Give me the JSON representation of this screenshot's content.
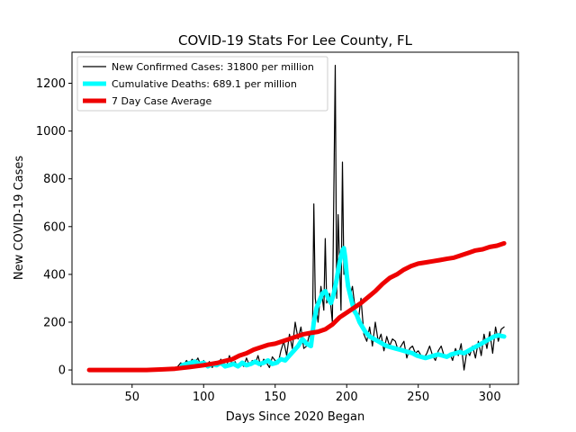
{
  "chart_data": {
    "type": "line",
    "title": "COVID-19 Stats For Lee County, FL",
    "xlabel": "Days Since 2020 Began",
    "ylabel": "New COVID-19 Cases",
    "xlim": [
      8,
      320
    ],
    "ylim": [
      -60,
      1330
    ],
    "xticks": [
      50,
      100,
      150,
      200,
      250,
      300
    ],
    "yticks": [
      0,
      200,
      400,
      600,
      800,
      1000,
      1200
    ],
    "grid": false,
    "legend_position": "top-left",
    "series": [
      {
        "name": "New Confirmed Cases: 31800 per million",
        "color": "#000000",
        "x": [
          20,
          30,
          40,
          50,
          60,
          70,
          80,
          82,
          84,
          86,
          88,
          90,
          92,
          94,
          96,
          98,
          100,
          102,
          104,
          106,
          108,
          110,
          112,
          114,
          116,
          118,
          120,
          122,
          124,
          126,
          128,
          130,
          132,
          134,
          136,
          138,
          140,
          142,
          144,
          146,
          148,
          150,
          152,
          154,
          156,
          158,
          160,
          162,
          164,
          166,
          168,
          170,
          172,
          174,
          176,
          177,
          178,
          180,
          182,
          184,
          185,
          186,
          188,
          190,
          192,
          193,
          194,
          196,
          197,
          198,
          200,
          202,
          204,
          206,
          208,
          210,
          212,
          214,
          216,
          218,
          220,
          222,
          224,
          226,
          228,
          230,
          232,
          234,
          236,
          238,
          240,
          242,
          244,
          246,
          248,
          250,
          252,
          254,
          256,
          258,
          260,
          262,
          264,
          266,
          268,
          270,
          272,
          274,
          276,
          278,
          280,
          282,
          284,
          286,
          288,
          290,
          292,
          294,
          296,
          298,
          300,
          302,
          304,
          306,
          308,
          310
        ],
        "y": [
          0,
          0,
          0,
          0,
          0,
          2,
          5,
          15,
          30,
          20,
          40,
          25,
          45,
          30,
          50,
          20,
          40,
          15,
          35,
          10,
          30,
          20,
          45,
          25,
          15,
          60,
          20,
          35,
          10,
          30,
          15,
          50,
          20,
          40,
          25,
          60,
          15,
          45,
          30,
          10,
          55,
          40,
          25,
          80,
          120,
          60,
          150,
          90,
          200,
          130,
          180,
          90,
          100,
          150,
          110,
          695,
          300,
          200,
          350,
          250,
          550,
          280,
          320,
          200,
          1275,
          300,
          650,
          250,
          870,
          400,
          450,
          300,
          350,
          250,
          200,
          300,
          150,
          120,
          180,
          100,
          200,
          120,
          150,
          80,
          140,
          100,
          130,
          120,
          80,
          100,
          120,
          50,
          90,
          100,
          70,
          80,
          60,
          50,
          70,
          100,
          60,
          40,
          80,
          100,
          60,
          50,
          70,
          40,
          90,
          60,
          110,
          0,
          80,
          60,
          100,
          50,
          120,
          60,
          150,
          90,
          160,
          70,
          180,
          120,
          170,
          180
        ]
      },
      {
        "name": "Cumulative Deaths: 689.1 per million",
        "color": "#00ffff",
        "x": [
          85,
          88,
          91,
          94,
          97,
          100,
          103,
          106,
          109,
          112,
          115,
          118,
          121,
          124,
          127,
          130,
          133,
          136,
          139,
          142,
          145,
          148,
          151,
          154,
          157,
          160,
          163,
          166,
          169,
          172,
          175,
          177,
          179,
          181,
          183,
          185,
          187,
          189,
          191,
          193,
          195,
          197,
          198,
          199,
          200,
          201,
          203,
          205,
          207,
          209,
          211,
          213,
          216,
          219,
          222,
          225,
          228,
          231,
          234,
          237,
          240,
          243,
          246,
          249,
          252,
          255,
          258,
          261,
          264,
          267,
          270,
          273,
          276,
          279,
          282,
          285,
          288,
          291,
          294,
          297,
          300,
          303,
          306,
          310
        ],
        "y": [
          20,
          25,
          30,
          35,
          25,
          30,
          15,
          25,
          20,
          30,
          15,
          20,
          25,
          15,
          30,
          20,
          25,
          35,
          25,
          30,
          40,
          25,
          30,
          45,
          40,
          60,
          80,
          100,
          130,
          110,
          100,
          200,
          260,
          290,
          320,
          330,
          300,
          280,
          320,
          380,
          450,
          500,
          510,
          470,
          400,
          350,
          300,
          250,
          230,
          200,
          180,
          160,
          140,
          130,
          120,
          110,
          100,
          95,
          90,
          85,
          80,
          75,
          70,
          60,
          55,
          50,
          55,
          60,
          65,
          60,
          55,
          65,
          70,
          75,
          70,
          80,
          90,
          100,
          110,
          120,
          130,
          140,
          145,
          140
        ]
      },
      {
        "name": "7 Day Case Average",
        "color": "#ee0000",
        "x": [
          20,
          40,
          60,
          70,
          80,
          90,
          100,
          110,
          115,
          120,
          125,
          130,
          135,
          140,
          145,
          150,
          155,
          160,
          165,
          170,
          175,
          180,
          185,
          190,
          195,
          200,
          205,
          210,
          215,
          220,
          225,
          230,
          235,
          240,
          245,
          250,
          255,
          260,
          265,
          270,
          275,
          280,
          285,
          290,
          295,
          300,
          305,
          310
        ],
        "y": [
          0,
          0,
          0,
          2,
          5,
          12,
          20,
          30,
          38,
          45,
          60,
          70,
          85,
          95,
          105,
          110,
          120,
          130,
          140,
          150,
          155,
          160,
          170,
          190,
          220,
          240,
          260,
          280,
          305,
          330,
          360,
          385,
          400,
          420,
          435,
          445,
          450,
          455,
          460,
          465,
          470,
          480,
          490,
          500,
          505,
          515,
          520,
          530
        ]
      }
    ]
  }
}
